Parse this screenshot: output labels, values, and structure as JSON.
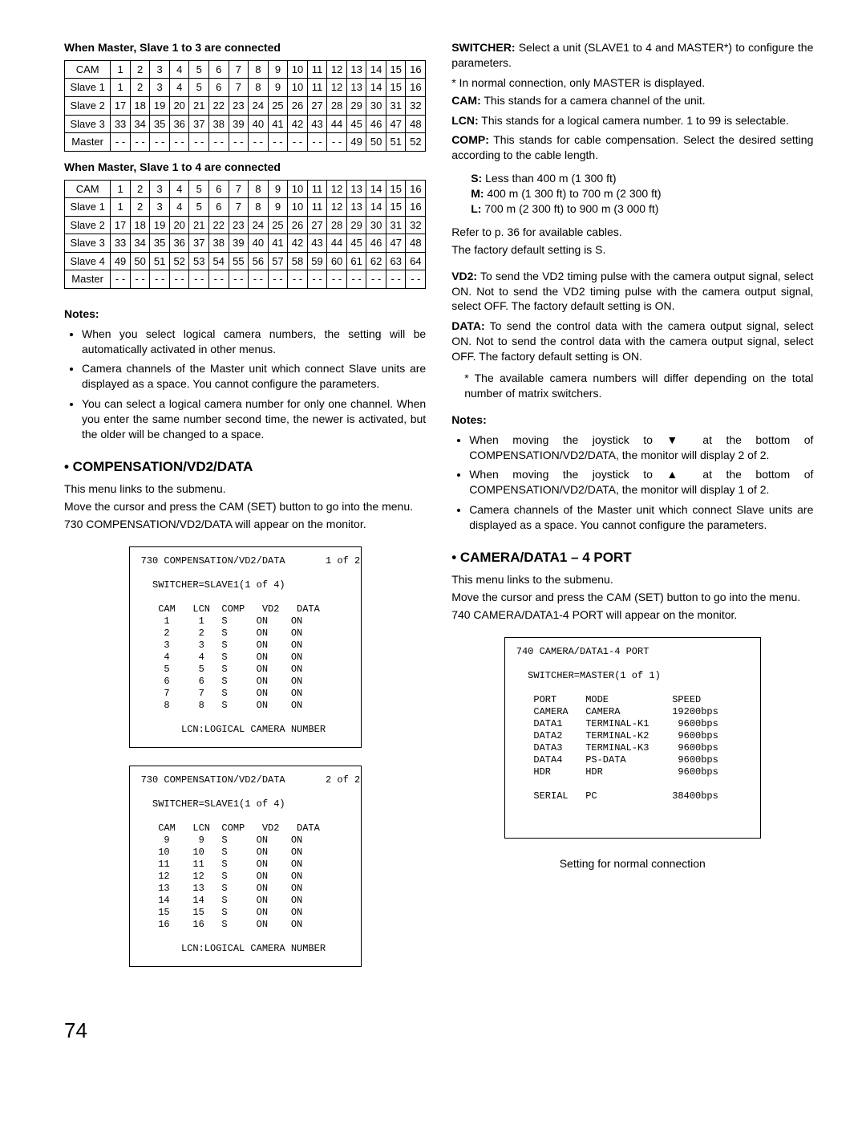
{
  "left": {
    "head1": "When Master, Slave 1 to 3 are connected",
    "table1": {
      "rows": [
        [
          "CAM",
          "1",
          "2",
          "3",
          "4",
          "5",
          "6",
          "7",
          "8",
          "9",
          "10",
          "11",
          "12",
          "13",
          "14",
          "15",
          "16"
        ],
        [
          "Slave 1",
          "1",
          "2",
          "3",
          "4",
          "5",
          "6",
          "7",
          "8",
          "9",
          "10",
          "11",
          "12",
          "13",
          "14",
          "15",
          "16"
        ],
        [
          "Slave 2",
          "17",
          "18",
          "19",
          "20",
          "21",
          "22",
          "23",
          "24",
          "25",
          "26",
          "27",
          "28",
          "29",
          "30",
          "31",
          "32"
        ],
        [
          "Slave 3",
          "33",
          "34",
          "35",
          "36",
          "37",
          "38",
          "39",
          "40",
          "41",
          "42",
          "43",
          "44",
          "45",
          "46",
          "47",
          "48"
        ],
        [
          "Master",
          "- -",
          "- -",
          "- -",
          "- -",
          "- -",
          "- -",
          "- -",
          "- -",
          "- -",
          "- -",
          "- -",
          "- -",
          "49",
          "50",
          "51",
          "52"
        ]
      ]
    },
    "head2": "When Master, Slave 1 to 4 are connected",
    "table2": {
      "rows": [
        [
          "CAM",
          "1",
          "2",
          "3",
          "4",
          "5",
          "6",
          "7",
          "8",
          "9",
          "10",
          "11",
          "12",
          "13",
          "14",
          "15",
          "16"
        ],
        [
          "Slave 1",
          "1",
          "2",
          "3",
          "4",
          "5",
          "6",
          "7",
          "8",
          "9",
          "10",
          "11",
          "12",
          "13",
          "14",
          "15",
          "16"
        ],
        [
          "Slave 2",
          "17",
          "18",
          "19",
          "20",
          "21",
          "22",
          "23",
          "24",
          "25",
          "26",
          "27",
          "28",
          "29",
          "30",
          "31",
          "32"
        ],
        [
          "Slave 3",
          "33",
          "34",
          "35",
          "36",
          "37",
          "38",
          "39",
          "40",
          "41",
          "42",
          "43",
          "44",
          "45",
          "46",
          "47",
          "48"
        ],
        [
          "Slave 4",
          "49",
          "50",
          "51",
          "52",
          "53",
          "54",
          "55",
          "56",
          "57",
          "58",
          "59",
          "60",
          "61",
          "62",
          "63",
          "64"
        ],
        [
          "Master",
          "- -",
          "- -",
          "- -",
          "- -",
          "- -",
          "- -",
          "- -",
          "- -",
          "- -",
          "- -",
          "- -",
          "- -",
          "- -",
          "- -",
          "- -",
          "- -"
        ]
      ]
    },
    "notes_label": "Notes:",
    "notes": [
      "When you select logical camera numbers, the setting will be automatically activated in other menus.",
      "Camera channels of the Master unit which connect Slave units are displayed as a space. You cannot configure the parameters.",
      "You can select a logical camera number for only one channel. When you enter the same number second time, the newer is activated, but the older will be changed to a space."
    ],
    "comp_head": "• COMPENSATION/VD2/DATA",
    "comp_p1": "This menu links to the submenu.",
    "comp_p2": "Move the cursor and press the CAM (SET) button to go into the menu.",
    "comp_p3": "730 COMPENSATION/VD2/DATA will appear on the monitor.",
    "box1": "730 COMPENSATION/VD2/DATA       1 of 2\n\n  SWITCHER=SLAVE1(1 of 4)\n\n   CAM   LCN  COMP   VD2   DATA\n    1     1   S     ON    ON\n    2     2   S     ON    ON\n    3     3   S     ON    ON\n    4     4   S     ON    ON\n    5     5   S     ON    ON\n    6     6   S     ON    ON\n    7     7   S     ON    ON\n    8     8   S     ON    ON\n\n       LCN:LOGICAL CAMERA NUMBER",
    "box2": "730 COMPENSATION/VD2/DATA       2 of 2\n\n  SWITCHER=SLAVE1(1 of 4)\n\n   CAM   LCN  COMP   VD2   DATA\n    9     9   S     ON    ON\n   10    10   S     ON    ON\n   11    11   S     ON    ON\n   12    12   S     ON    ON\n   13    13   S     ON    ON\n   14    14   S     ON    ON\n   15    15   S     ON    ON\n   16    16   S     ON    ON\n\n       LCN:LOGICAL CAMERA NUMBER"
  },
  "right": {
    "switcher_label": "SWITCHER:",
    "switcher_text": " Select a unit (SLAVE1 to 4 and MASTER*) to configure the parameters.",
    "switcher_note": "* In normal connection, only MASTER is displayed.",
    "cam_label": "CAM:",
    "cam_text": " This stands for a camera channel of the unit.",
    "lcn_label": "LCN:",
    "lcn_text": " This stands for a logical camera number. 1 to 99 is selectable.",
    "comp_label": "COMP:",
    "comp_text": " This stands for cable compensation. Select the desired setting according to the cable length.",
    "s_line": "S: Less than 400 m (1 300 ft)",
    "m_line": "M: 400 m (1 300 ft) to 700 m (2 300 ft)",
    "l_line": "L: 700 m (2 300 ft) to 900 m (3 000 ft)",
    "refer": "Refer to p. 36 for available cables.",
    "factory": "The factory default setting is S.",
    "vd2_label": "VD2:",
    "vd2_text": " To send the VD2 timing pulse with the camera output signal, select ON. Not to send the VD2 timing pulse with the camera output signal, select OFF. The factory default setting is ON.",
    "data_label": "DATA:",
    "data_text": " To send the control data with the camera output signal, select ON. Not to send the control data with the camera output signal, select OFF. The factory default setting is ON.",
    "avail_note": "* The available camera numbers will differ depending on the total number of matrix switchers.",
    "notes_label": "Notes:",
    "notes": [
      "When moving the joystick to ▼ at the bottom of COMPENSATION/VD2/DATA, the monitor will display 2 of 2.",
      "When moving the joystick to ▲ at the bottom of COMPENSATION/VD2/DATA, the monitor will display 1 of 2.",
      "Camera channels of the Master unit which connect Slave units are displayed as a space. You cannot configure the parameters."
    ],
    "port_head": "• CAMERA/DATA1 – 4 PORT",
    "port_p1": "This menu links to the submenu.",
    "port_p2": "Move the cursor and press the CAM (SET) button to go into the menu.",
    "port_p3": "740 CAMERA/DATA1-4 PORT will appear on the monitor.",
    "box3": "740 CAMERA/DATA1-4 PORT\n\n  SWITCHER=MASTER(1 of 1)\n\n   PORT     MODE           SPEED\n   CAMERA   CAMERA         19200bps\n   DATA1    TERMINAL-K1     9600bps\n   DATA2    TERMINAL-K2     9600bps\n   DATA3    TERMINAL-K3     9600bps\n   DATA4    PS-DATA         9600bps\n   HDR      HDR             9600bps\n\n   SERIAL   PC             38400bps\n\n\n",
    "caption": "Setting for normal connection"
  },
  "pagenum": "74"
}
